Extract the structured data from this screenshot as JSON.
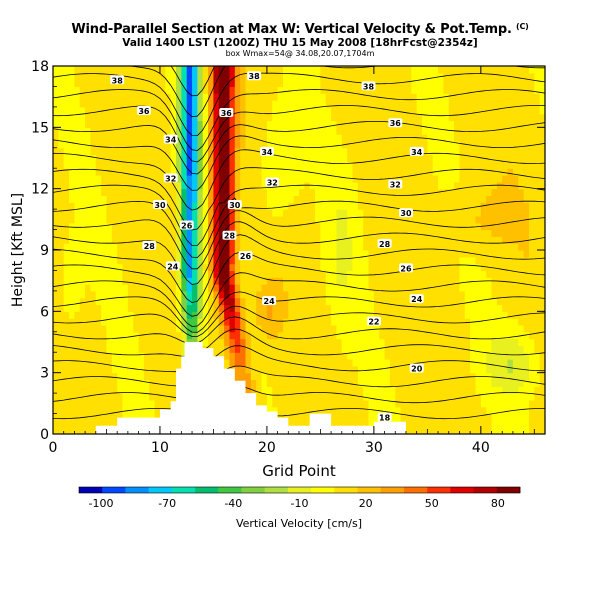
{
  "header": {
    "title": "Wind-Parallel Section at Max W: Vertical Velocity & Pot.Temp.",
    "title_unit": "(C)",
    "subtitle": "Valid 1400 LST (1200Z) THU 15 May 2008 [18hrFcst@2354z]",
    "subtitle2": "box Wmax=54@ 34.08,20.07,1704m"
  },
  "chart_data": {
    "type": "heatmap",
    "xlabel": "Grid Point",
    "ylabel": "Height [Kft MSL]",
    "xlim": [
      0,
      46
    ],
    "ylim": [
      0,
      18
    ],
    "x_ticks": [
      0,
      10,
      20,
      30,
      40
    ],
    "y_ticks": [
      0,
      3,
      6,
      9,
      12,
      15,
      18
    ],
    "colorbar": {
      "label": "Vertical Velocity [cm/s]",
      "tick_labels": [
        "-100",
        "-70",
        "-40",
        "-10",
        "20",
        "50",
        "80"
      ],
      "tick_values": [
        -100,
        -70,
        -40,
        -10,
        20,
        50,
        80
      ],
      "range": [
        -110,
        90
      ],
      "colors": [
        "#0000b4",
        "#0048ff",
        "#0090ff",
        "#00c8ff",
        "#00e0b0",
        "#00c070",
        "#40c840",
        "#80d040",
        "#b0e040",
        "#e8f020",
        "#ffff00",
        "#ffe000",
        "#ffc000",
        "#ffa000",
        "#ff7000",
        "#ff3000",
        "#e00000",
        "#b00000",
        "#800000"
      ]
    },
    "contour_labels": [
      {
        "text": "38",
        "x": 6,
        "y": 17.3
      },
      {
        "text": "36",
        "x": 8.5,
        "y": 15.8
      },
      {
        "text": "34",
        "x": 11,
        "y": 14.4
      },
      {
        "text": "32",
        "x": 11,
        "y": 12.5
      },
      {
        "text": "30",
        "x": 10,
        "y": 11.2
      },
      {
        "text": "28",
        "x": 9,
        "y": 9.2
      },
      {
        "text": "24",
        "x": 11.2,
        "y": 8.2
      },
      {
        "text": "26",
        "x": 12.5,
        "y": 10.2
      },
      {
        "text": "38",
        "x": 18.8,
        "y": 17.5
      },
      {
        "text": "36",
        "x": 16.2,
        "y": 15.7
      },
      {
        "text": "34",
        "x": 20,
        "y": 13.8
      },
      {
        "text": "32",
        "x": 20.5,
        "y": 12.3
      },
      {
        "text": "30",
        "x": 17,
        "y": 11.2
      },
      {
        "text": "28",
        "x": 16.5,
        "y": 9.7
      },
      {
        "text": "26",
        "x": 18,
        "y": 8.7
      },
      {
        "text": "24",
        "x": 20.2,
        "y": 6.5
      },
      {
        "text": "38",
        "x": 29.5,
        "y": 17
      },
      {
        "text": "36",
        "x": 32,
        "y": 15.2
      },
      {
        "text": "34",
        "x": 34,
        "y": 13.8
      },
      {
        "text": "32",
        "x": 32,
        "y": 12.2
      },
      {
        "text": "30",
        "x": 33,
        "y": 10.8
      },
      {
        "text": "28",
        "x": 31,
        "y": 9.3
      },
      {
        "text": "26",
        "x": 33,
        "y": 8.1
      },
      {
        "text": "24",
        "x": 34,
        "y": 6.6
      },
      {
        "text": "22",
        "x": 30,
        "y": 5.5
      },
      {
        "text": "20",
        "x": 34,
        "y": 3.2
      },
      {
        "text": "18",
        "x": 31,
        "y": 0.8
      }
    ]
  }
}
